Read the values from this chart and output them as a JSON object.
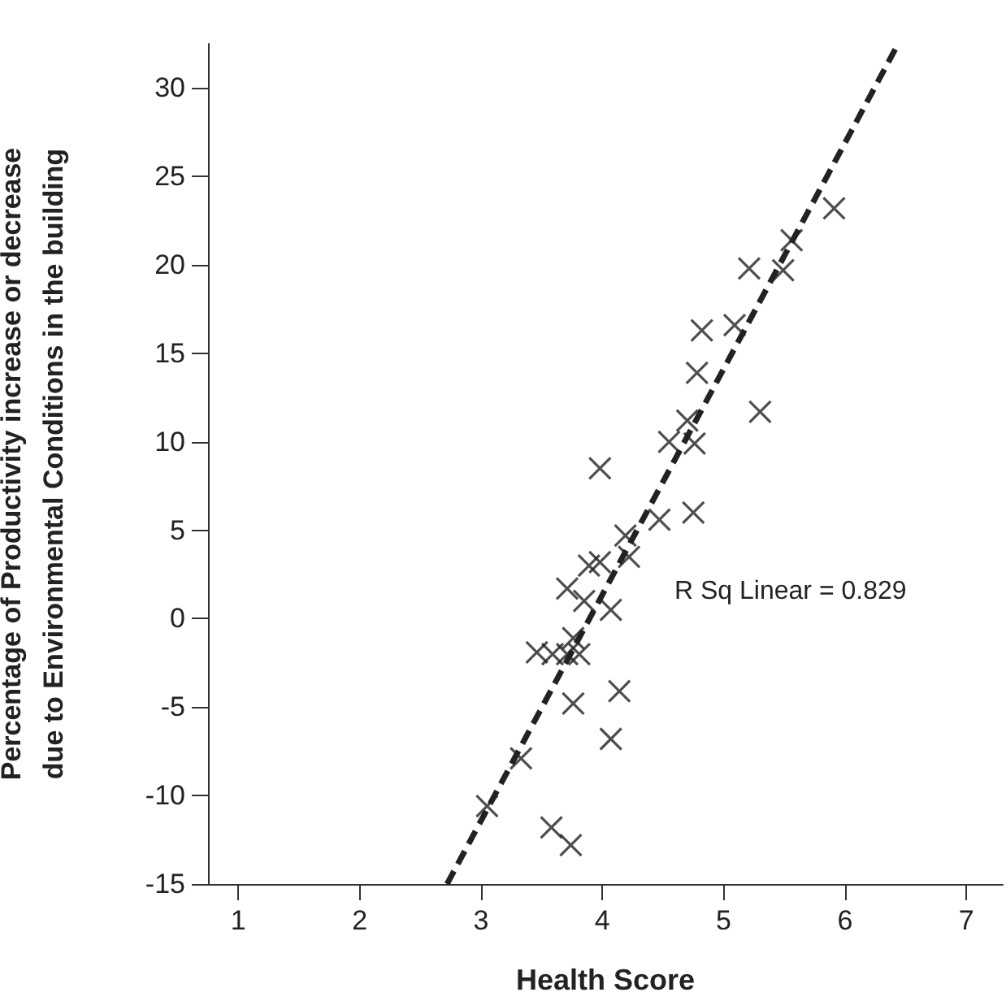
{
  "chart_data": {
    "type": "scatter",
    "xlabel": "Health Score",
    "ylabel": "Percentage of Productivity increase or decrease due to Environmental Conditions in the building",
    "annotations": [
      "R Sq Linear = 0.829"
    ],
    "xlim": [
      0.75,
      7.3
    ],
    "xticks": [
      1,
      2,
      3,
      4,
      5,
      6,
      7
    ],
    "ylim": [
      -15,
      32.5
    ],
    "yticks": [
      -15,
      -10,
      -5,
      0,
      5,
      10,
      15,
      20,
      25,
      30
    ],
    "grid": false,
    "series": [
      {
        "color": "#222222",
        "marker": "cross",
        "x": [
          5.91,
          5.56,
          5.49,
          5.21,
          5.09,
          4.82,
          4.78,
          5.3,
          4.7,
          4.55,
          4.76,
          3.98,
          4.75,
          4.47,
          4.19,
          4.22,
          3.89,
          3.98,
          3.71,
          3.85,
          4.07,
          3.46,
          3.59,
          3.71,
          3.81,
          3.76,
          4.14,
          3.76,
          4.07,
          3.33,
          3.05,
          3.58,
          3.74
        ],
        "values": [
          23.2,
          21.4,
          19.7,
          19.8,
          16.6,
          16.3,
          13.9,
          11.7,
          11.2,
          10.0,
          9.9,
          8.5,
          6.0,
          5.6,
          4.7,
          3.5,
          3.0,
          3.2,
          1.7,
          1.0,
          0.5,
          -1.9,
          -2.0,
          -2.0,
          -2.0,
          -1.1,
          -4.1,
          -4.8,
          -6.8,
          -7.9,
          -10.6,
          -11.8,
          -12.8
        ]
      },
      {
        "type": "line",
        "color": "#222222",
        "marker": "none",
        "line_style": "dashed",
        "x": [
          2.72,
          6.43
        ],
        "values": [
          -15,
          32.4
        ]
      }
    ]
  }
}
